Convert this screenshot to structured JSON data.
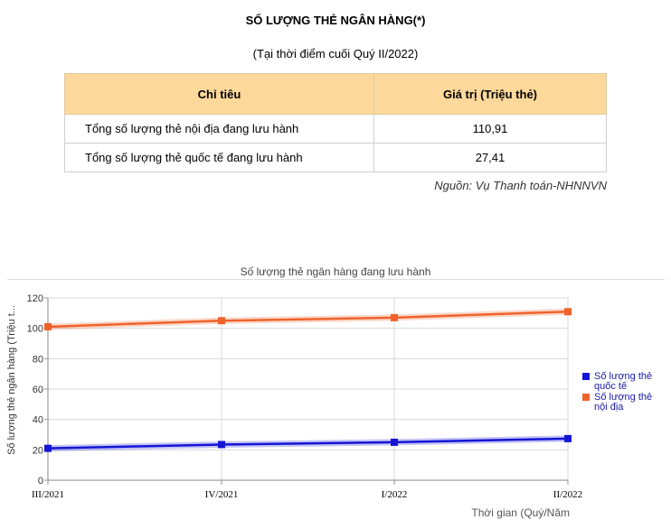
{
  "header": {
    "title": "SỐ LƯỢNG THẺ NGÂN HÀNG(*)",
    "subtitle": "(Tại thời điểm cuối Quý II/2022)"
  },
  "table": {
    "headers": [
      "Chỉ tiêu",
      "Giá trị (Triệu thẻ)"
    ],
    "rows": [
      [
        "Tổng số lượng thẻ nội địa đang lưu hành",
        "110,91"
      ],
      [
        "Tổng số lượng thẻ quốc tế đang lưu hành",
        "27,41"
      ]
    ]
  },
  "source": "Nguồn: Vụ Thanh toán-NHNNVN",
  "chart_data": {
    "type": "line",
    "title": "Số lượng thẻ ngân hàng đang lưu hành",
    "xlabel": "Thời gian (Quý/Năm",
    "ylabel": "Số lượng thẻ ngân hàng (Triệu t...",
    "categories": [
      "III/2021",
      "IV/2021",
      "I/2022",
      "II/2022"
    ],
    "ylim": [
      0,
      120
    ],
    "yticks": [
      0,
      20,
      40,
      60,
      80,
      100,
      120
    ],
    "grid": true,
    "legend_position": "right",
    "series": [
      {
        "name": "Số lượng thẻ quốc tế",
        "color": "#1515d6",
        "values": [
          21,
          23.5,
          25,
          27.41
        ]
      },
      {
        "name": "Số lượng thẻ nội địa",
        "color": "#f0622b",
        "values": [
          101,
          105,
          107,
          110.91
        ]
      }
    ]
  }
}
